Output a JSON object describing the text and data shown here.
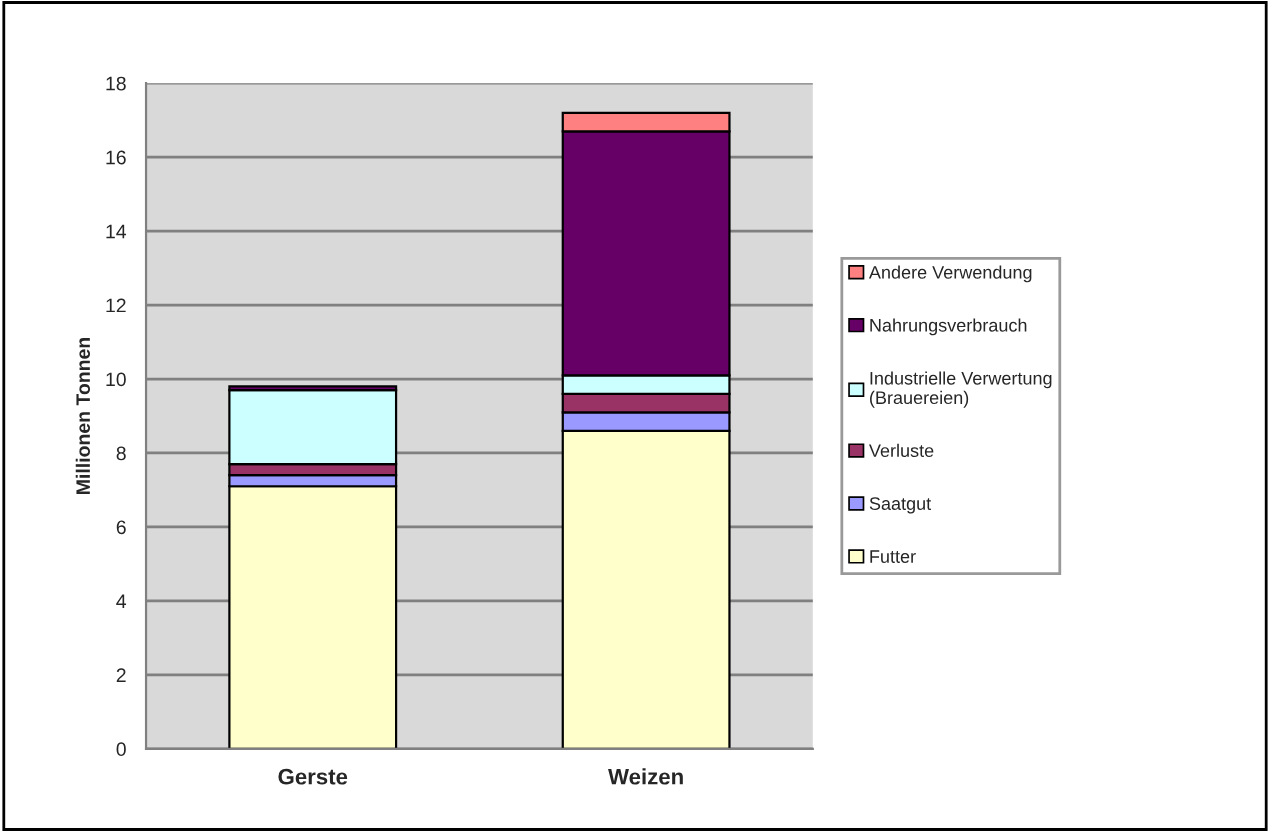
{
  "chart_data": {
    "type": "bar",
    "stacked": true,
    "ylabel": "Millionen Tonnen",
    "categories": [
      "Gerste",
      "Weizen"
    ],
    "series": [
      {
        "name": "Futter",
        "color": "#ffffcc",
        "values": [
          7.1,
          8.6
        ]
      },
      {
        "name": "Saatgut",
        "color": "#9999ff",
        "values": [
          0.3,
          0.5
        ]
      },
      {
        "name": "Verluste",
        "color": "#993366",
        "values": [
          0.3,
          0.5
        ]
      },
      {
        "name": "Industrielle Verwertung\n(Brauereien)",
        "color": "#ccffff",
        "values": [
          2.0,
          0.5
        ]
      },
      {
        "name": "Nahrungsverbrauch",
        "color": "#660066",
        "values": [
          0.1,
          6.6
        ]
      },
      {
        "name": "Andere Verwendung",
        "color": "#ff8080",
        "values": [
          null,
          0.5
        ]
      }
    ],
    "ylim": [
      0,
      18
    ],
    "yticks": [
      0,
      2,
      4,
      6,
      8,
      10,
      12,
      14,
      16,
      18
    ],
    "grid": "y",
    "legend": "right"
  }
}
